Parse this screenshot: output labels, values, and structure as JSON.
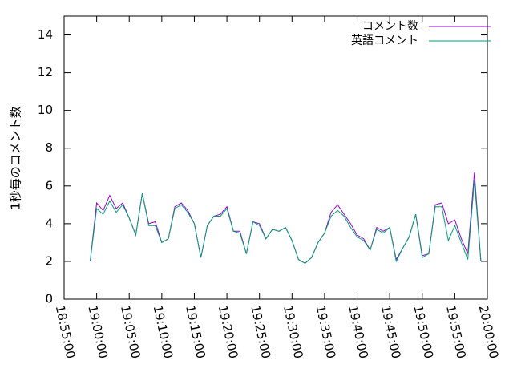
{
  "chart_data": {
    "type": "line",
    "ylabel": "1秒毎のコメント数",
    "x": [
      "18:59:00",
      "19:00:00",
      "19:01:00",
      "19:02:00",
      "19:03:00",
      "19:04:00",
      "19:05:00",
      "19:06:00",
      "19:07:00",
      "19:08:00",
      "19:09:00",
      "19:10:00",
      "19:11:00",
      "19:12:00",
      "19:13:00",
      "19:14:00",
      "19:15:00",
      "19:16:00",
      "19:17:00",
      "19:18:00",
      "19:19:00",
      "19:20:00",
      "19:21:00",
      "19:22:00",
      "19:23:00",
      "19:24:00",
      "19:25:00",
      "19:26:00",
      "19:27:00",
      "19:28:00",
      "19:29:00",
      "19:30:00",
      "19:31:00",
      "19:32:00",
      "19:33:00",
      "19:34:00",
      "19:35:00",
      "19:36:00",
      "19:37:00",
      "19:38:00",
      "19:39:00",
      "19:40:00",
      "19:41:00",
      "19:42:00",
      "19:43:00",
      "19:44:00",
      "19:45:00",
      "19:46:00",
      "19:47:00",
      "19:48:00",
      "19:49:00",
      "19:50:00",
      "19:51:00",
      "19:52:00",
      "19:53:00",
      "19:54:00",
      "19:55:00",
      "19:56:00",
      "19:57:00",
      "19:58:00",
      "19:59:00"
    ],
    "series": [
      {
        "name": "コメント数",
        "color": "#9400d3",
        "values": [
          2.0,
          5.1,
          4.7,
          5.5,
          4.8,
          5.1,
          4.3,
          3.4,
          5.6,
          4.0,
          4.1,
          3.0,
          3.2,
          4.9,
          5.1,
          4.7,
          4.0,
          2.2,
          3.9,
          4.4,
          4.5,
          4.9,
          3.6,
          3.6,
          2.4,
          4.1,
          4.0,
          3.2,
          3.7,
          3.6,
          3.8,
          3.1,
          2.1,
          1.9,
          2.2,
          3.0,
          3.5,
          4.6,
          5.0,
          4.5,
          4.0,
          3.4,
          3.2,
          2.6,
          3.8,
          3.6,
          3.8,
          2.1,
          2.7,
          3.3,
          4.5,
          2.3,
          2.4,
          5.0,
          5.1,
          4.0,
          4.2,
          3.2,
          2.4,
          6.7,
          2.0
        ]
      },
      {
        "name": "英語コメント",
        "color": "#009e73",
        "values": [
          2.0,
          4.8,
          4.5,
          5.2,
          4.6,
          5.0,
          4.3,
          3.4,
          5.6,
          3.9,
          3.9,
          3.0,
          3.2,
          4.8,
          5.0,
          4.6,
          4.0,
          2.2,
          3.9,
          4.4,
          4.4,
          4.8,
          3.6,
          3.5,
          2.4,
          4.1,
          3.9,
          3.2,
          3.7,
          3.6,
          3.8,
          3.1,
          2.1,
          1.9,
          2.2,
          3.0,
          3.5,
          4.4,
          4.7,
          4.4,
          3.8,
          3.3,
          3.1,
          2.6,
          3.7,
          3.5,
          3.8,
          2.0,
          2.7,
          3.3,
          4.5,
          2.2,
          2.4,
          4.9,
          4.9,
          3.1,
          3.9,
          3.0,
          2.1,
          6.3,
          2.0
        ]
      }
    ],
    "xlim": [
      "18:55:00",
      "20:00:00"
    ],
    "xticks": [
      "18:55:00",
      "19:00:00",
      "19:05:00",
      "19:10:00",
      "19:15:00",
      "19:20:00",
      "19:25:00",
      "19:30:00",
      "19:35:00",
      "19:40:00",
      "19:45:00",
      "19:50:00",
      "19:55:00",
      "20:00:00"
    ],
    "ylim": [
      0,
      15
    ],
    "yticks": [
      0,
      2,
      4,
      6,
      8,
      10,
      12,
      14
    ],
    "legend": "upper right"
  }
}
